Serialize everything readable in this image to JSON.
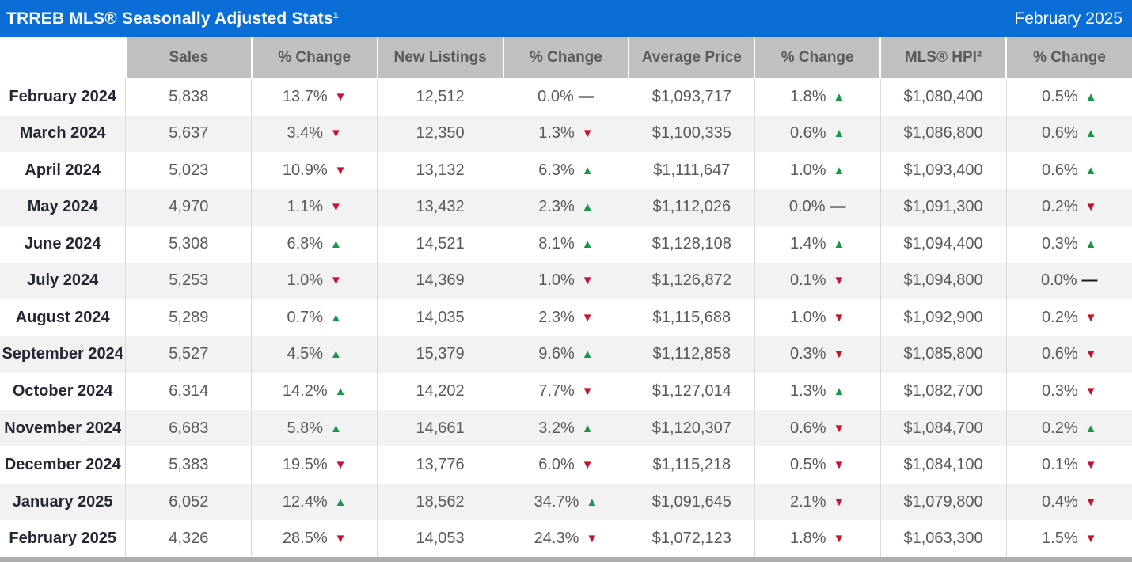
{
  "header": {
    "title": "TRREB MLS® Seasonally Adjusted Stats¹",
    "date": "February 2025"
  },
  "colors": {
    "header_blue": "#0a6ed6",
    "column_header_gray": "#c0c0c0",
    "row_stripe_gray": "#f2f2f2",
    "up_green": "#149a47",
    "down_red": "#c4122f",
    "flat_black": "#1a1a1a",
    "data_text_gray": "#595959",
    "month_text_dark": "#232734",
    "bottom_strip_gray": "#adadad"
  },
  "icons": {
    "up": "▲",
    "down": "▼",
    "flat": "—"
  },
  "chart_data": {
    "type": "table",
    "title": "TRREB MLS® Seasonally Adjusted Stats¹",
    "period_label": "February 2025",
    "columns": [
      "",
      "Sales",
      "% Change",
      "New Listings",
      "% Change",
      "Average Price",
      "% Change",
      "MLS® HPI²",
      "% Change"
    ],
    "rows": [
      {
        "month": "February 2024",
        "sales": "5,838",
        "sales_change": {
          "value": "13.7%",
          "dir": "down"
        },
        "new_listings": "12,512",
        "new_listings_change": {
          "value": "0.0%",
          "dir": "flat"
        },
        "avg_price": "$1,093,717",
        "avg_price_change": {
          "value": "1.8%",
          "dir": "up"
        },
        "hpi": "$1,080,400",
        "hpi_change": {
          "value": "0.5%",
          "dir": "up"
        }
      },
      {
        "month": "March 2024",
        "sales": "5,637",
        "sales_change": {
          "value": "3.4%",
          "dir": "down"
        },
        "new_listings": "12,350",
        "new_listings_change": {
          "value": "1.3%",
          "dir": "down"
        },
        "avg_price": "$1,100,335",
        "avg_price_change": {
          "value": "0.6%",
          "dir": "up"
        },
        "hpi": "$1,086,800",
        "hpi_change": {
          "value": "0.6%",
          "dir": "up"
        }
      },
      {
        "month": "April 2024",
        "sales": "5,023",
        "sales_change": {
          "value": "10.9%",
          "dir": "down"
        },
        "new_listings": "13,132",
        "new_listings_change": {
          "value": "6.3%",
          "dir": "up"
        },
        "avg_price": "$1,111,647",
        "avg_price_change": {
          "value": "1.0%",
          "dir": "up"
        },
        "hpi": "$1,093,400",
        "hpi_change": {
          "value": "0.6%",
          "dir": "up"
        }
      },
      {
        "month": "May 2024",
        "sales": "4,970",
        "sales_change": {
          "value": "1.1%",
          "dir": "down"
        },
        "new_listings": "13,432",
        "new_listings_change": {
          "value": "2.3%",
          "dir": "up"
        },
        "avg_price": "$1,112,026",
        "avg_price_change": {
          "value": "0.0%",
          "dir": "flat"
        },
        "hpi": "$1,091,300",
        "hpi_change": {
          "value": "0.2%",
          "dir": "down"
        }
      },
      {
        "month": "June 2024",
        "sales": "5,308",
        "sales_change": {
          "value": "6.8%",
          "dir": "up"
        },
        "new_listings": "14,521",
        "new_listings_change": {
          "value": "8.1%",
          "dir": "up"
        },
        "avg_price": "$1,128,108",
        "avg_price_change": {
          "value": "1.4%",
          "dir": "up"
        },
        "hpi": "$1,094,400",
        "hpi_change": {
          "value": "0.3%",
          "dir": "up"
        }
      },
      {
        "month": "July 2024",
        "sales": "5,253",
        "sales_change": {
          "value": "1.0%",
          "dir": "down"
        },
        "new_listings": "14,369",
        "new_listings_change": {
          "value": "1.0%",
          "dir": "down"
        },
        "avg_price": "$1,126,872",
        "avg_price_change": {
          "value": "0.1%",
          "dir": "down"
        },
        "hpi": "$1,094,800",
        "hpi_change": {
          "value": "0.0%",
          "dir": "flat"
        }
      },
      {
        "month": "August 2024",
        "sales": "5,289",
        "sales_change": {
          "value": "0.7%",
          "dir": "up"
        },
        "new_listings": "14,035",
        "new_listings_change": {
          "value": "2.3%",
          "dir": "down"
        },
        "avg_price": "$1,115,688",
        "avg_price_change": {
          "value": "1.0%",
          "dir": "down"
        },
        "hpi": "$1,092,900",
        "hpi_change": {
          "value": "0.2%",
          "dir": "down"
        }
      },
      {
        "month": "September 2024",
        "sales": "5,527",
        "sales_change": {
          "value": "4.5%",
          "dir": "up"
        },
        "new_listings": "15,379",
        "new_listings_change": {
          "value": "9.6%",
          "dir": "up"
        },
        "avg_price": "$1,112,858",
        "avg_price_change": {
          "value": "0.3%",
          "dir": "down"
        },
        "hpi": "$1,085,800",
        "hpi_change": {
          "value": "0.6%",
          "dir": "down"
        }
      },
      {
        "month": "October 2024",
        "sales": "6,314",
        "sales_change": {
          "value": "14.2%",
          "dir": "up"
        },
        "new_listings": "14,202",
        "new_listings_change": {
          "value": "7.7%",
          "dir": "down"
        },
        "avg_price": "$1,127,014",
        "avg_price_change": {
          "value": "1.3%",
          "dir": "up"
        },
        "hpi": "$1,082,700",
        "hpi_change": {
          "value": "0.3%",
          "dir": "down"
        }
      },
      {
        "month": "November 2024",
        "sales": "6,683",
        "sales_change": {
          "value": "5.8%",
          "dir": "up"
        },
        "new_listings": "14,661",
        "new_listings_change": {
          "value": "3.2%",
          "dir": "up"
        },
        "avg_price": "$1,120,307",
        "avg_price_change": {
          "value": "0.6%",
          "dir": "down"
        },
        "hpi": "$1,084,700",
        "hpi_change": {
          "value": "0.2%",
          "dir": "up"
        }
      },
      {
        "month": "December 2024",
        "sales": "5,383",
        "sales_change": {
          "value": "19.5%",
          "dir": "down"
        },
        "new_listings": "13,776",
        "new_listings_change": {
          "value": "6.0%",
          "dir": "down"
        },
        "avg_price": "$1,115,218",
        "avg_price_change": {
          "value": "0.5%",
          "dir": "down"
        },
        "hpi": "$1,084,100",
        "hpi_change": {
          "value": "0.1%",
          "dir": "down"
        }
      },
      {
        "month": "January 2025",
        "sales": "6,052",
        "sales_change": {
          "value": "12.4%",
          "dir": "up"
        },
        "new_listings": "18,562",
        "new_listings_change": {
          "value": "34.7%",
          "dir": "up"
        },
        "avg_price": "$1,091,645",
        "avg_price_change": {
          "value": "2.1%",
          "dir": "down"
        },
        "hpi": "$1,079,800",
        "hpi_change": {
          "value": "0.4%",
          "dir": "down"
        }
      },
      {
        "month": "February 2025",
        "sales": "4,326",
        "sales_change": {
          "value": "28.5%",
          "dir": "down"
        },
        "new_listings": "14,053",
        "new_listings_change": {
          "value": "24.3%",
          "dir": "down"
        },
        "avg_price": "$1,072,123",
        "avg_price_change": {
          "value": "1.8%",
          "dir": "down"
        },
        "hpi": "$1,063,300",
        "hpi_change": {
          "value": "1.5%",
          "dir": "down"
        }
      }
    ]
  }
}
